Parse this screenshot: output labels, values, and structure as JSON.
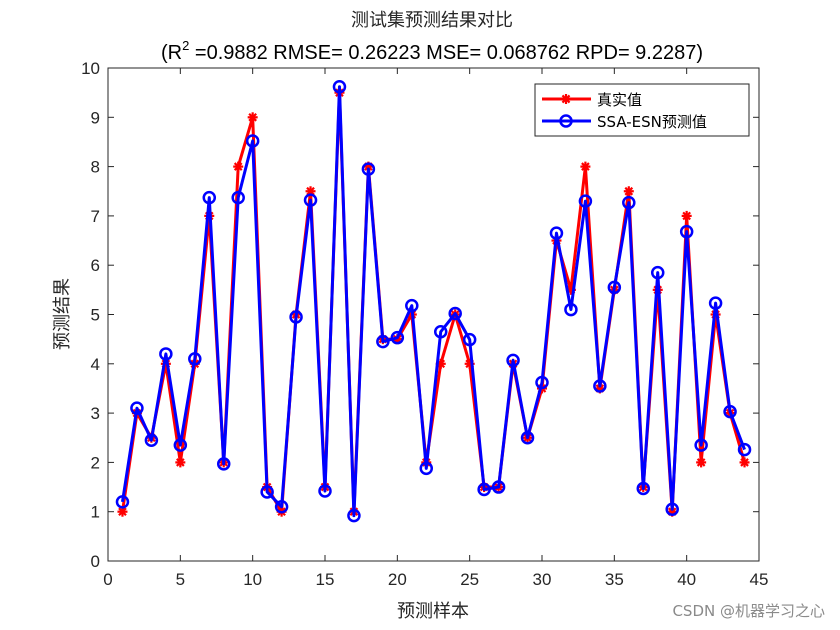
{
  "chart_data": {
    "type": "line",
    "title": "测试集预测结果对比",
    "subtitle_prefix": "(R",
    "subtitle_sup": "2",
    "subtitle_rest": " =0.9882 RMSE= 0.26223 MSE= 0.068762 RPD= 9.2287)",
    "xlabel": "预测样本",
    "ylabel": "预测结果",
    "xlim": [
      0,
      45
    ],
    "ylim": [
      0,
      10
    ],
    "xticks": [
      0,
      5,
      10,
      15,
      20,
      25,
      30,
      35,
      40,
      45
    ],
    "yticks": [
      0,
      1,
      2,
      3,
      4,
      5,
      6,
      7,
      8,
      9,
      10
    ],
    "grid": false,
    "legend_position": "top-right",
    "x": [
      1,
      2,
      3,
      4,
      5,
      6,
      7,
      8,
      9,
      10,
      11,
      12,
      13,
      14,
      15,
      16,
      17,
      18,
      19,
      20,
      21,
      22,
      23,
      24,
      25,
      26,
      27,
      28,
      29,
      30,
      31,
      32,
      33,
      34,
      35,
      36,
      37,
      38,
      39,
      40,
      41,
      42,
      43,
      44
    ],
    "series": [
      {
        "name": "真实值",
        "color": "#ff0000",
        "marker": "asterisk",
        "values": [
          1,
          3,
          2.5,
          4,
          2,
          4,
          7,
          2,
          8,
          9,
          1.5,
          1,
          5,
          7.5,
          1.5,
          9.5,
          1,
          8,
          4.5,
          4.5,
          5,
          2,
          4,
          5,
          4,
          1.5,
          1.5,
          4,
          2.5,
          3.5,
          6.5,
          5.5,
          8,
          3.5,
          5.5,
          7.5,
          1.5,
          5.5,
          1,
          7,
          2,
          5,
          3,
          2
        ]
      },
      {
        "name": "SSA-ESN预测值",
        "color": "#0000ff",
        "marker": "circle",
        "values": [
          1.2,
          3.1,
          2.45,
          4.2,
          2.35,
          4.1,
          7.37,
          1.97,
          7.37,
          8.52,
          1.4,
          1.1,
          4.95,
          7.32,
          1.42,
          9.62,
          0.92,
          7.95,
          4.45,
          4.53,
          5.18,
          1.88,
          4.65,
          5.02,
          4.49,
          1.45,
          1.5,
          4.07,
          2.5,
          3.62,
          6.65,
          5.1,
          7.3,
          3.55,
          5.55,
          7.27,
          1.47,
          5.85,
          1.05,
          6.68,
          2.35,
          5.23,
          3.03,
          2.26
        ]
      }
    ]
  },
  "watermark": "CSDN @机器学习之心"
}
